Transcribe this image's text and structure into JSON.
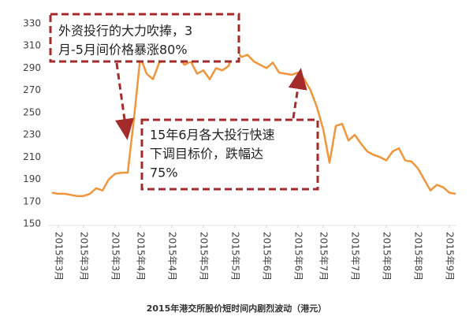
{
  "chart_data": {
    "type": "line",
    "caption": "2015年港交所股价短时间内剧烈波动（港元）",
    "annotations": [
      [
        "外资投行的大力吹捧，3",
        "月-5月间价格暴涨80%"
      ],
      [
        "15年6月各大投行快速",
        "下调目标价，跌幅达",
        "75%"
      ]
    ],
    "x": [
      0,
      1,
      2,
      3,
      4,
      5,
      6,
      7,
      8,
      9,
      10,
      11,
      12,
      13,
      14,
      15,
      16,
      17,
      18,
      19,
      20,
      21,
      22,
      23,
      24,
      25,
      26,
      27,
      28,
      29,
      30,
      31,
      32,
      33,
      34,
      35,
      36,
      37,
      38,
      39,
      40,
      41,
      42,
      43,
      44,
      45,
      46,
      47,
      48,
      49,
      50,
      51,
      52,
      53,
      54,
      55,
      56,
      57,
      58,
      59,
      60,
      61,
      62,
      63,
      64
    ],
    "values": [
      178,
      177,
      177,
      176,
      175,
      175,
      177,
      182,
      180,
      190,
      195,
      196,
      196,
      245,
      300,
      285,
      280,
      295,
      298,
      296,
      300,
      293,
      296,
      285,
      288,
      280,
      290,
      288,
      292,
      308,
      300,
      302,
      296,
      293,
      290,
      295,
      286,
      285,
      284,
      286,
      280,
      270,
      255,
      235,
      205,
      238,
      240,
      225,
      230,
      222,
      215,
      212,
      210,
      207,
      215,
      218,
      207,
      206,
      200,
      190,
      180,
      185,
      183,
      178,
      177
    ],
    "color": "#f0953a",
    "xlim": [
      0,
      64
    ],
    "xticks": [
      {
        "value": 1,
        "label": "2015年3月"
      },
      {
        "value": 5,
        "label": "2015年3月"
      },
      {
        "value": 10,
        "label": "2015年3月"
      },
      {
        "value": 14,
        "label": "2015年4月"
      },
      {
        "value": 19,
        "label": "2015年4月"
      },
      {
        "value": 24,
        "label": "2015年5月"
      },
      {
        "value": 29,
        "label": "2015年5月"
      },
      {
        "value": 34,
        "label": "2015年6月"
      },
      {
        "value": 39,
        "label": "2015年6月"
      },
      {
        "value": 43,
        "label": "2015年7月"
      },
      {
        "value": 48,
        "label": "2015年7月"
      },
      {
        "value": 53,
        "label": "2015年8月"
      },
      {
        "value": 58,
        "label": "2015年8月"
      },
      {
        "value": 63,
        "label": "2015年9月"
      }
    ],
    "ylim": [
      150,
      330
    ],
    "yticks": [
      150,
      170,
      190,
      210,
      230,
      250,
      270,
      290,
      310,
      330
    ],
    "grid": false
  }
}
